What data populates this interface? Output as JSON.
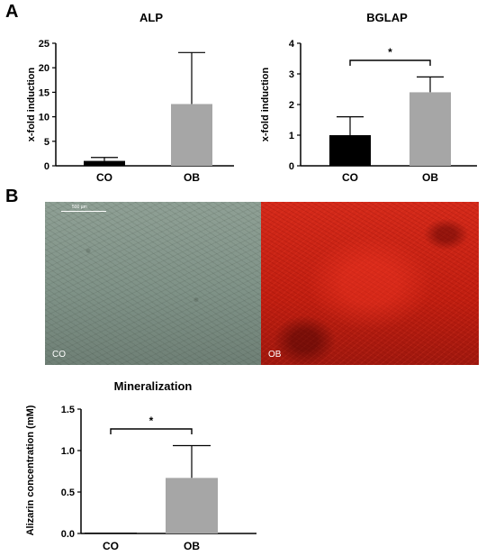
{
  "panels": {
    "a_label": "A",
    "b_label": "B"
  },
  "images": {
    "co_label": "CO",
    "ob_label": "OB",
    "scale_label": "500 µm"
  },
  "chart_data": [
    {
      "type": "bar",
      "title": "ALP",
      "ylabel": "x-fold induction",
      "categories": [
        "CO",
        "OB"
      ],
      "values": [
        1.0,
        12.6
      ],
      "error": [
        0.7,
        10.5
      ],
      "colors": [
        "#000000",
        "#a6a6a6"
      ],
      "ylim": [
        0,
        25
      ],
      "yticks": [
        0,
        5,
        10,
        15,
        20,
        25
      ],
      "significance": null
    },
    {
      "type": "bar",
      "title": "BGLAP",
      "ylabel": "x-fold induction",
      "categories": [
        "CO",
        "OB"
      ],
      "values": [
        1.0,
        2.4
      ],
      "error": [
        0.6,
        0.5
      ],
      "colors": [
        "#000000",
        "#a6a6a6"
      ],
      "ylim": [
        0,
        4
      ],
      "yticks": [
        0,
        1,
        2,
        3,
        4
      ],
      "significance": "*"
    },
    {
      "type": "bar",
      "title": "Mineralization",
      "ylabel": "Alizarin concentration (mM)",
      "categories": [
        "CO",
        "OB"
      ],
      "values": [
        0.01,
        0.67
      ],
      "error": [
        0.0,
        0.39
      ],
      "colors": [
        "#000000",
        "#a6a6a6"
      ],
      "ylim": [
        0,
        1.5
      ],
      "yticks": [
        0.0,
        0.5,
        1.0,
        1.5
      ],
      "significance": "*"
    }
  ]
}
